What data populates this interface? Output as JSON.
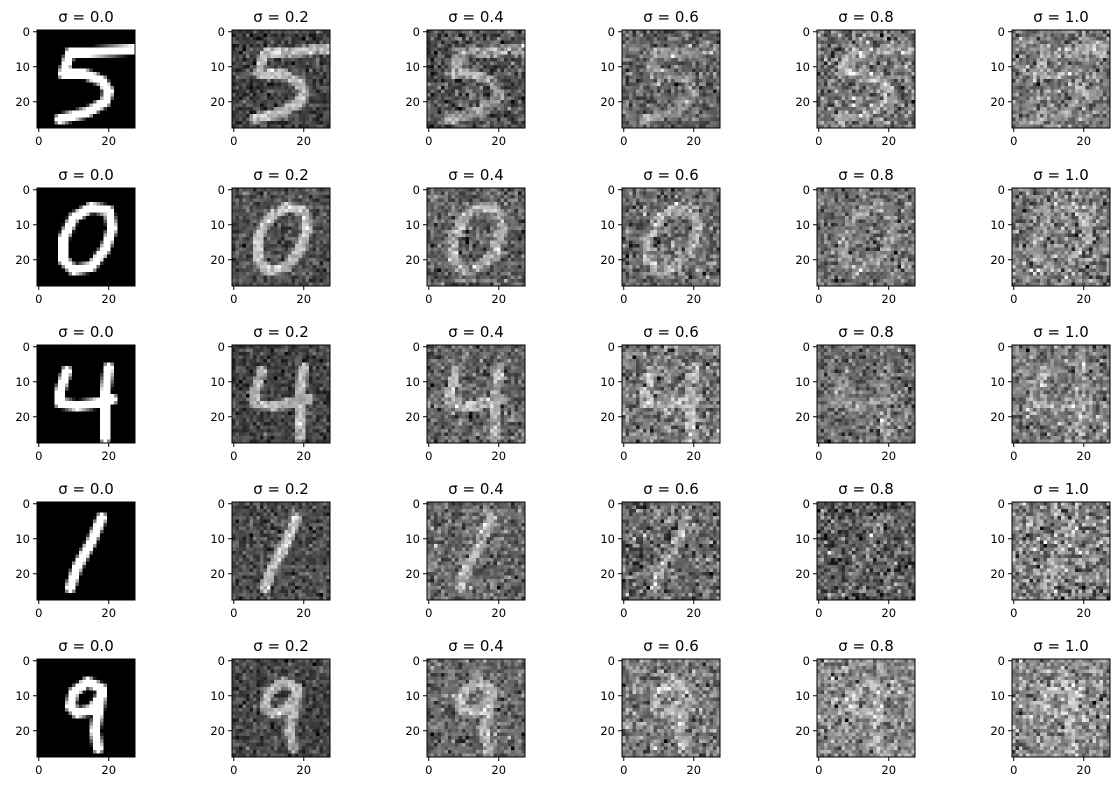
{
  "figure": {
    "colormap": "gray",
    "axis_color": "#000000",
    "background": "#ffffff"
  },
  "chart_data": {
    "type": "heatmap",
    "description_grid": "5 rows (MNIST digits) x 6 columns (Gaussian noise levels)",
    "rows": [
      {
        "digit": "5"
      },
      {
        "digit": "0"
      },
      {
        "digit": "4"
      },
      {
        "digit": "1"
      },
      {
        "digit": "9"
      }
    ],
    "sigma_values": [
      0.0,
      0.2,
      0.4,
      0.6,
      0.8,
      1.0
    ],
    "titles": [
      "σ = 0.0",
      "σ = 0.2",
      "σ = 0.4",
      "σ = 0.6",
      "σ = 0.8",
      "σ = 1.0"
    ],
    "image_size": 28,
    "x_ticks": [
      "0",
      "20"
    ],
    "y_ticks": [
      "0",
      "10",
      "20"
    ],
    "x_tick_values": [
      0,
      20
    ],
    "y_tick_values": [
      0,
      10,
      20
    ],
    "xlim": [
      -0.5,
      27.5
    ],
    "ylim": [
      27.5,
      -0.5
    ],
    "xlabel": "",
    "ylabel": ""
  }
}
